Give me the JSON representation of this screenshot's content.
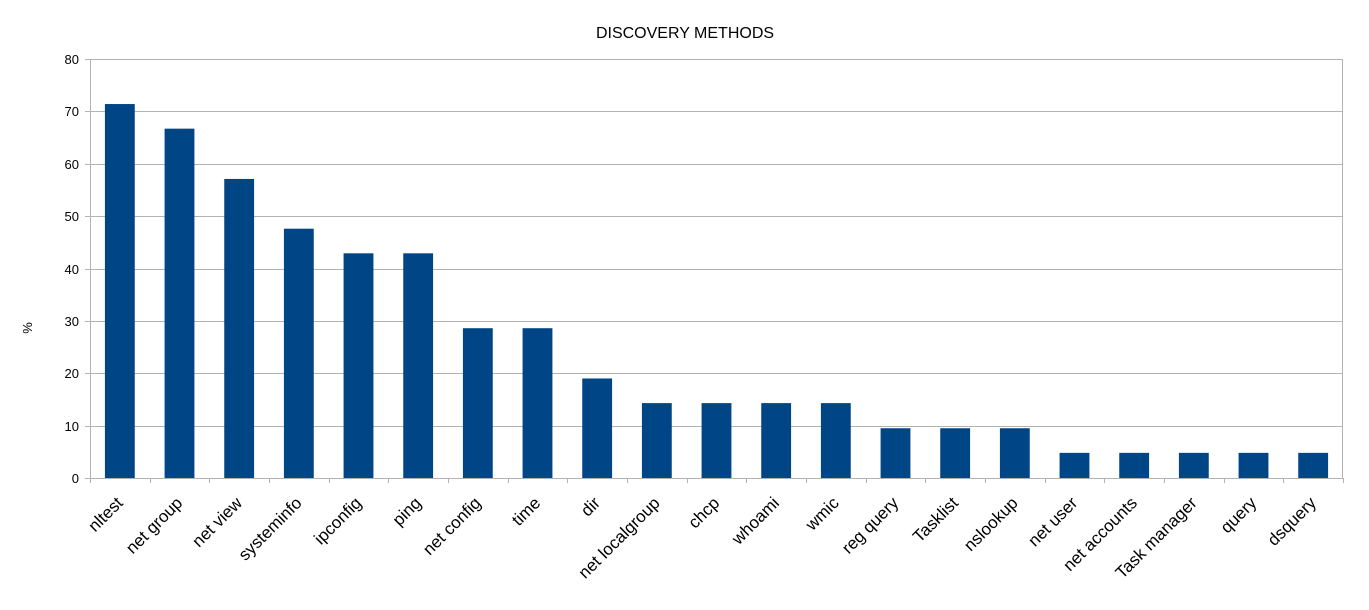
{
  "chart_data": {
    "type": "bar",
    "title": "DISCOVERY METHODS",
    "xlabel": "",
    "ylabel": "%",
    "ylim": [
      0,
      80
    ],
    "yticks": [
      0,
      10,
      20,
      30,
      40,
      50,
      60,
      70,
      80
    ],
    "grid": true,
    "legend": "none",
    "bar_color": "#004586",
    "categories": [
      "nltest",
      "net group",
      "net view",
      "systeminfo",
      "ipconfig",
      "ping",
      "net config",
      "time",
      "dir",
      "net localgroup",
      "chcp",
      "whoami",
      "wmic",
      "reg query",
      "Tasklist",
      "nslookup",
      "net user",
      "net accounts",
      "Task manager",
      "query",
      "dsquery"
    ],
    "values": [
      71.4,
      66.7,
      57.1,
      47.6,
      42.9,
      42.9,
      28.6,
      28.6,
      19.0,
      14.3,
      14.3,
      14.3,
      14.3,
      9.5,
      9.5,
      9.5,
      4.8,
      4.8,
      4.8,
      4.8,
      4.8
    ]
  }
}
